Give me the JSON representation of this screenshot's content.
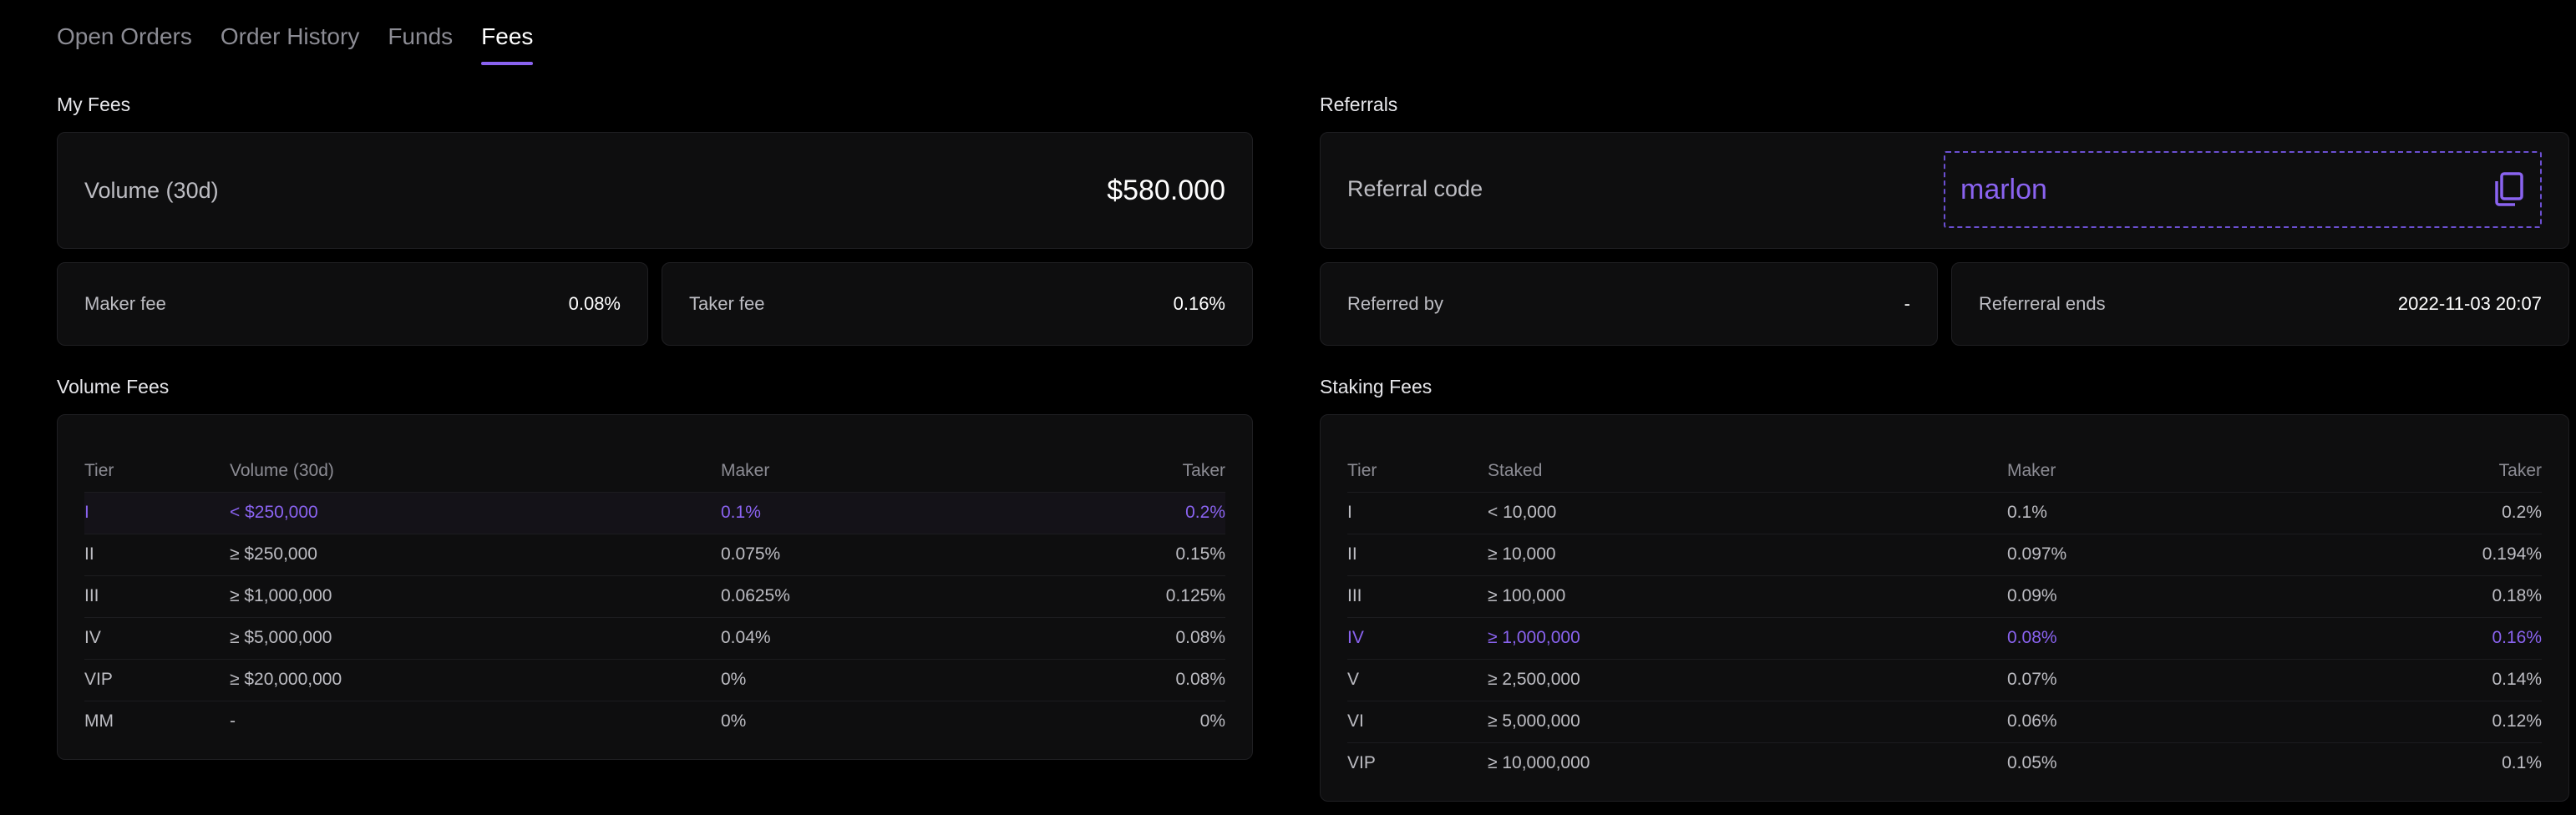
{
  "tabs": [
    {
      "label": "Open Orders"
    },
    {
      "label": "Order History"
    },
    {
      "label": "Funds"
    },
    {
      "label": "Fees"
    }
  ],
  "colors": {
    "accent": "#8a63f0",
    "background": "#000000",
    "card": "#0e0e0f"
  },
  "my_fees": {
    "title": "My Fees",
    "volume_label": "Volume (30d)",
    "volume_value": "$580.000",
    "maker_label": "Maker fee",
    "maker_value": "0.08%",
    "taker_label": "Taker fee",
    "taker_value": "0.16%"
  },
  "referrals": {
    "title": "Referrals",
    "code_label": "Referral code",
    "code_value": "marlon",
    "copy_icon": "copy-icon",
    "referred_by_label": "Referred by",
    "referred_by_value": "-",
    "ends_label": "Referreral ends",
    "ends_value": "2022-11-03 20:07"
  },
  "volume_fees": {
    "title": "Volume Fees",
    "headers": [
      "Tier",
      "Volume (30d)",
      "Maker",
      "Taker"
    ],
    "rows": [
      [
        "I",
        "< $250,000",
        "0.1%",
        "0.2%"
      ],
      [
        "II",
        "≥ $250,000",
        "0.075%",
        "0.15%"
      ],
      [
        "III",
        "≥ $1,000,000",
        "0.0625%",
        "0.125%"
      ],
      [
        "IV",
        "≥ $5,000,000",
        "0.04%",
        "0.08%"
      ],
      [
        "VIP",
        "≥ $20,000,000",
        "0%",
        "0.08%"
      ],
      [
        "MM",
        "-",
        "0%",
        "0%"
      ]
    ],
    "highlight_row": 0
  },
  "staking_fees": {
    "title": "Staking Fees",
    "headers": [
      "Tier",
      "Staked",
      "Maker",
      "Taker"
    ],
    "rows": [
      [
        "I",
        "< 10,000",
        "0.1%",
        "0.2%"
      ],
      [
        "II",
        "≥ 10,000",
        "0.097%",
        "0.194%"
      ],
      [
        "III",
        "≥ 100,000",
        "0.09%",
        "0.18%"
      ],
      [
        "IV",
        "≥ 1,000,000",
        "0.08%",
        "0.16%"
      ],
      [
        "V",
        "≥ 2,500,000",
        "0.07%",
        "0.14%"
      ],
      [
        "VI",
        "≥ 5,000,000",
        "0.06%",
        "0.12%"
      ],
      [
        "VIP",
        "≥ 10,000,000",
        "0.05%",
        "0.1%"
      ]
    ],
    "highlight_row": 3
  }
}
